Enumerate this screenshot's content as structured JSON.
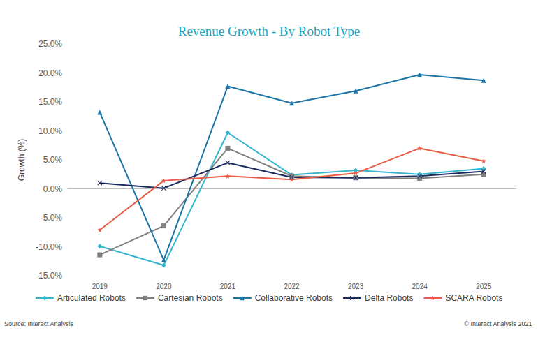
{
  "chart_data": {
    "type": "line",
    "title": "Revenue Growth - By Robot Type",
    "y_label": "Growth (%)",
    "annotations": [
      "Source: Interact Analysis",
      "© Interact Analysis 2021"
    ],
    "categories": [
      "2019",
      "2020",
      "2021",
      "2022",
      "2023",
      "2024",
      "2025"
    ],
    "series": [
      {
        "name": "Articulated Robots",
        "color": "#35b6ce",
        "marker": "diamond",
        "values": [
          -9.9,
          -13.2,
          9.7,
          2.4,
          3.2,
          2.5,
          3.5
        ]
      },
      {
        "name": "Cartesian Robots",
        "color": "#808080",
        "marker": "square",
        "values": [
          -11.4,
          -6.4,
          7.0,
          2.2,
          1.9,
          1.8,
          2.5
        ]
      },
      {
        "name": "Collaborative Robots",
        "color": "#1b75a6",
        "marker": "triangle",
        "values": [
          13.2,
          -12.3,
          17.7,
          14.8,
          16.9,
          19.7,
          18.7
        ]
      },
      {
        "name": "Delta Robots",
        "color": "#1a2b5f",
        "marker": "x",
        "values": [
          1.0,
          0.1,
          4.5,
          2.0,
          1.9,
          2.2,
          3.0
        ]
      },
      {
        "name": "SCARA Robots",
        "color": "#e85d45",
        "marker": "star",
        "values": [
          -7.1,
          1.4,
          2.2,
          1.6,
          2.7,
          7.0,
          4.8
        ]
      }
    ],
    "ylim": [
      -15,
      25
    ],
    "yticks": [
      {
        "value": -15,
        "label": "-15.0%"
      },
      {
        "value": -10,
        "label": "-10.0%"
      },
      {
        "value": -5,
        "label": "-5.0%"
      },
      {
        "value": 0,
        "label": "0.0%"
      },
      {
        "value": 5,
        "label": "5.0%"
      },
      {
        "value": 10,
        "label": "10.0%"
      },
      {
        "value": 15,
        "label": "15.0%"
      },
      {
        "value": 20,
        "label": "20.0%"
      },
      {
        "value": 25,
        "label": "25.0%"
      }
    ],
    "grid": false,
    "legend": "bottom"
  }
}
